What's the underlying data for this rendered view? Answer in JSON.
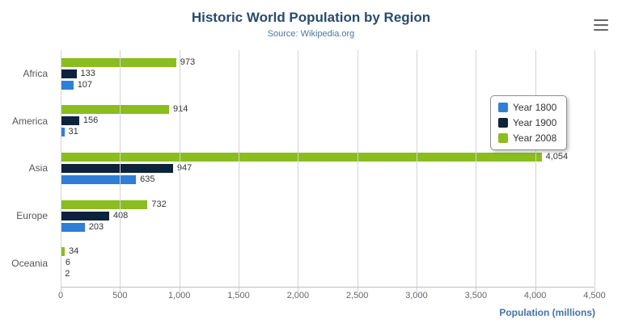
{
  "header": {
    "title": "Historic World Population by Region",
    "subtitle": "Source: Wikipedia.org"
  },
  "icons": {
    "menu": "hamburger-menu"
  },
  "chart_data": {
    "type": "bar",
    "orientation": "horizontal",
    "title": "Historic World Population by Region",
    "subtitle": "Source: Wikipedia.org",
    "categories": [
      "Africa",
      "America",
      "Asia",
      "Europe",
      "Oceania"
    ],
    "series": [
      {
        "name": "Year 1800",
        "color": "#2f7ed8",
        "values": [
          107,
          31,
          635,
          203,
          2
        ]
      },
      {
        "name": "Year 1900",
        "color": "#0d233a",
        "values": [
          133,
          156,
          947,
          408,
          6
        ]
      },
      {
        "name": "Year 2008",
        "color": "#8bbc21",
        "values": [
          973,
          914,
          4054,
          732,
          34
        ]
      }
    ],
    "bar_display_order_top_to_bottom": [
      "Year 2008",
      "Year 1900",
      "Year 1800"
    ],
    "xlabel": "Population (millions)",
    "ylabel": "",
    "xlim": [
      0,
      4500
    ],
    "ticks": [
      "0",
      "500",
      "1,000",
      "1,500",
      "2,000",
      "2,500",
      "3,000",
      "3,500",
      "4,000",
      "4,500"
    ],
    "tick_values": [
      0,
      500,
      1000,
      1500,
      2000,
      2500,
      3000,
      3500,
      4000,
      4500
    ],
    "grid": true,
    "legend_position": "right",
    "data_labels": true
  }
}
